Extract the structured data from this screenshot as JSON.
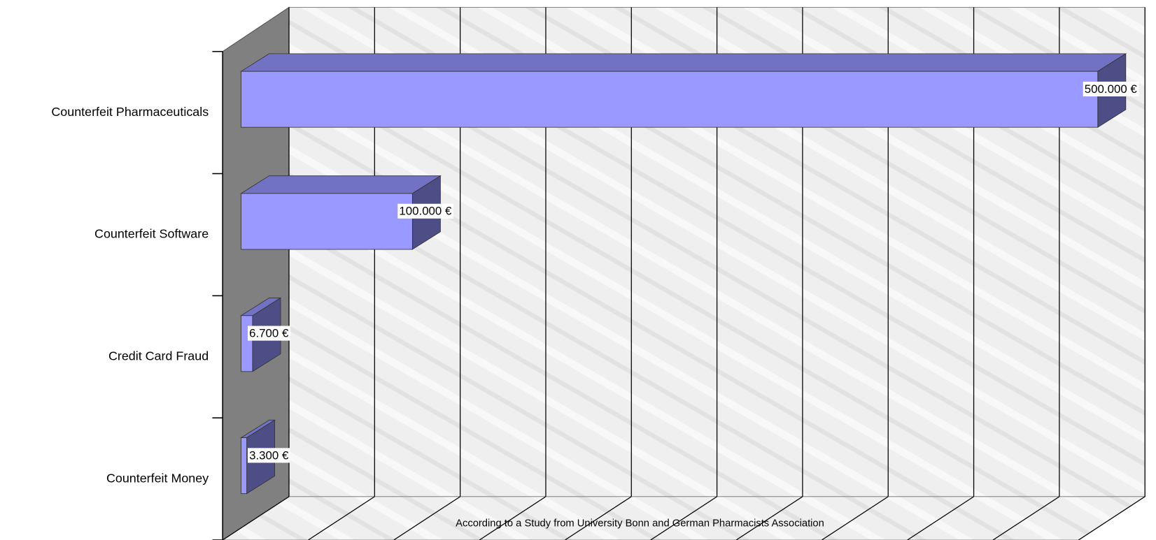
{
  "chart_data": {
    "type": "bar3d",
    "subtitle": "According to a Study from University Bonn and German Pharmacists Association",
    "categories": [
      "Counterfeit Pharmaceuticals",
      "Counterfeit Software",
      "Credit Card Fraud",
      "Counterfeit Money"
    ],
    "values": [
      500000,
      100000,
      6700,
      3300
    ],
    "value_labels": [
      "500.000 €",
      "100.000 €",
      "6.700 €",
      "3.300 €"
    ],
    "colors": {
      "front": "#9999ff",
      "top": "#7272c4",
      "side": "#4e4e86"
    },
    "xlim": [
      0,
      500000
    ],
    "xticks": [
      0,
      50000,
      100000,
      150000,
      200000,
      250000,
      300000,
      350000,
      400000,
      450000,
      500000
    ],
    "grid": true
  }
}
